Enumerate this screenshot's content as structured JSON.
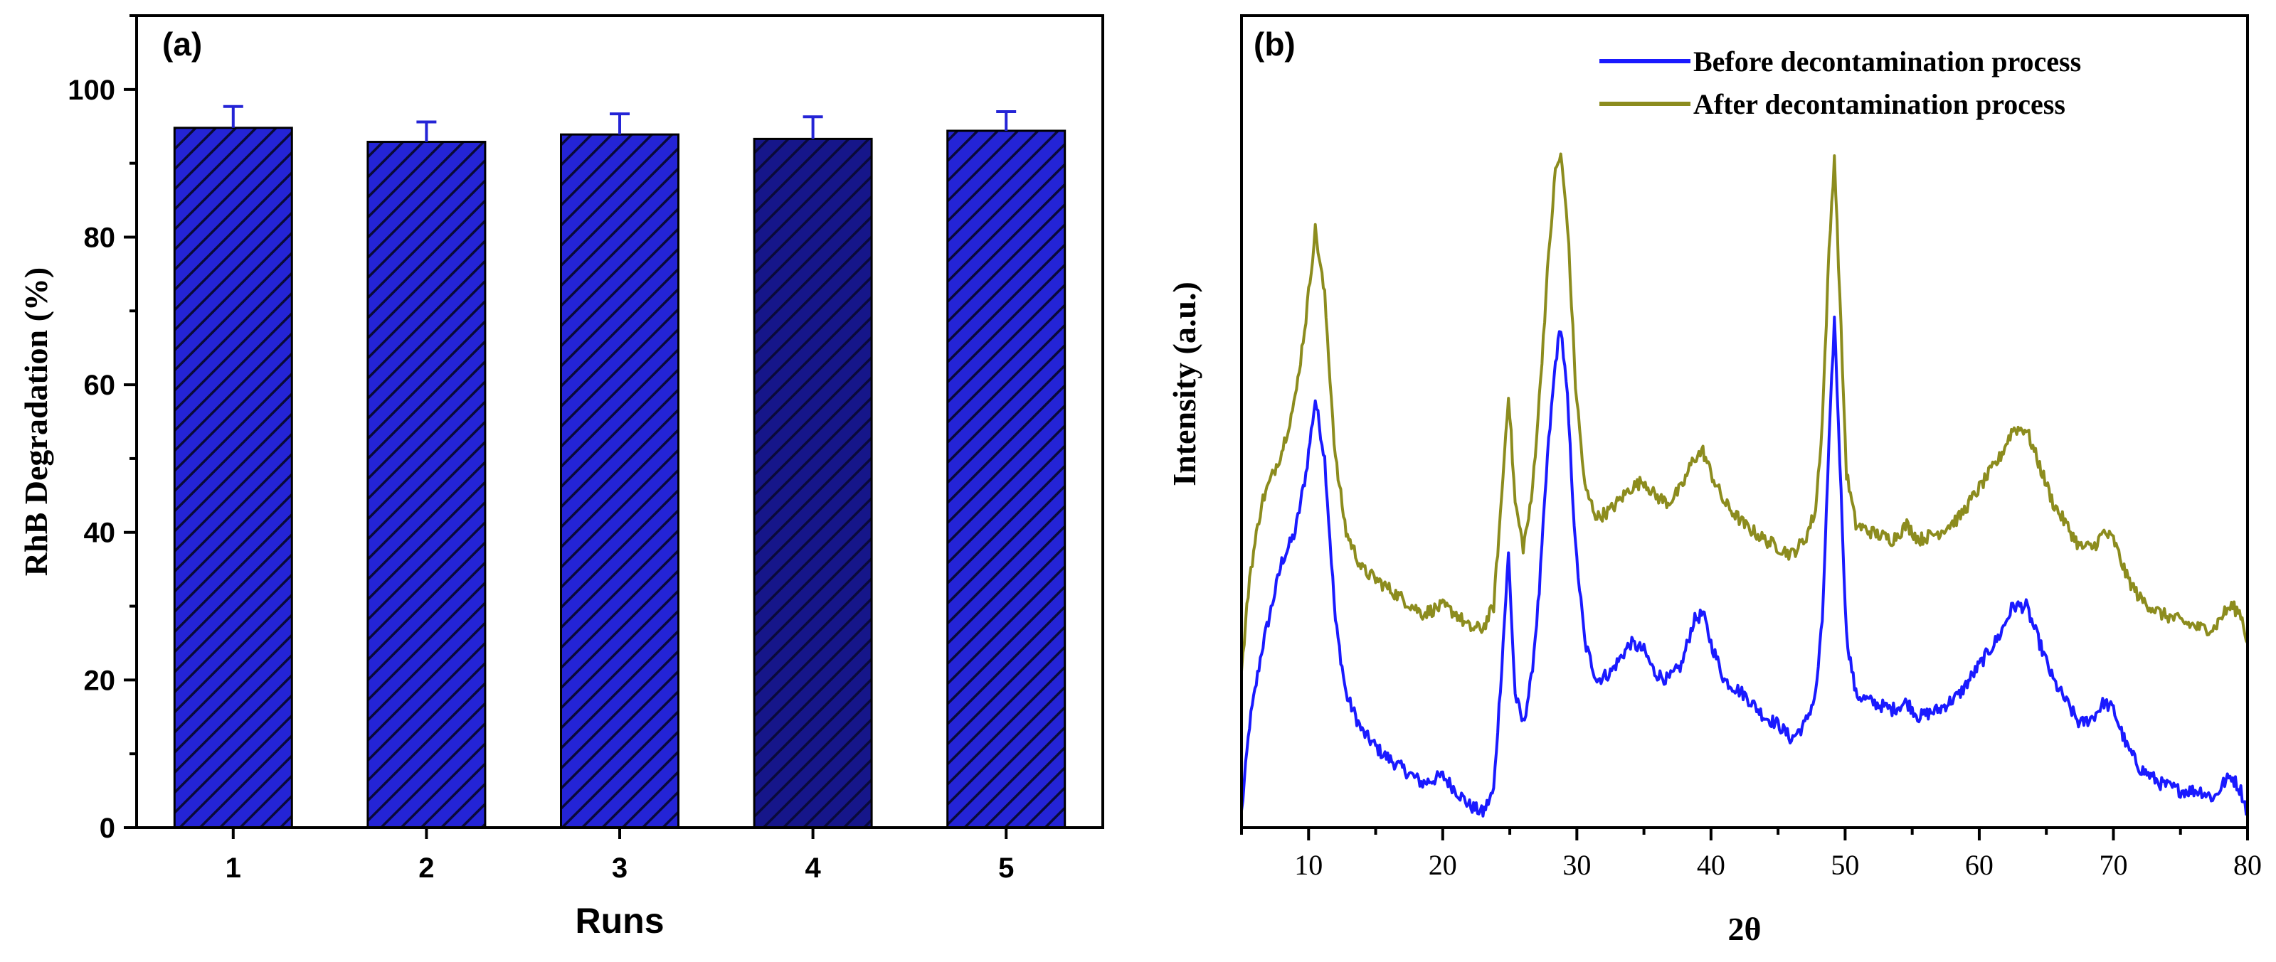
{
  "chart_data": [
    {
      "panel": "(a)",
      "type": "bar",
      "categories": [
        "1",
        "2",
        "3",
        "4",
        "5"
      ],
      "values": [
        94.8,
        92.9,
        93.9,
        93.3,
        94.4
      ],
      "errors": [
        2.9,
        2.7,
        2.8,
        3.0,
        2.6
      ],
      "xlabel": "Runs",
      "ylabel": "RhB Degradation (%)",
      "ylim": [
        0,
        110
      ],
      "yticks": [
        0,
        20,
        40,
        60,
        80,
        100
      ],
      "bar_color": "#2424d6",
      "bar_color_dark": "#16168a",
      "hatch_color": "#0a0a3a"
    },
    {
      "panel": "(b)",
      "type": "line",
      "xlabel": "2θ",
      "ylabel": "Intensity (a.u.)",
      "xlim": [
        5,
        80
      ],
      "ylim": [
        0,
        110
      ],
      "xticks": [
        10,
        20,
        30,
        40,
        50,
        60,
        70,
        80
      ],
      "series": [
        {
          "name": "Before decontamination process",
          "color": "#1a1aff",
          "x": [
            5,
            5.6,
            6.5,
            8,
            9,
            9.8,
            10.5,
            11.2,
            12,
            12.8,
            14,
            15.5,
            17,
            18.5,
            20,
            21,
            22,
            23,
            23.8,
            24.4,
            24.9,
            25.4,
            26,
            26.6,
            27.2,
            27.8,
            28.4,
            28.8,
            29.3,
            29.9,
            30.6,
            31.5,
            32.5,
            34,
            35,
            35.8,
            36.8,
            37.8,
            38.7,
            39.4,
            40,
            41,
            42.5,
            44,
            45,
            46,
            47,
            47.8,
            48.3,
            48.8,
            49.2,
            49.6,
            50.1,
            50.8,
            52,
            53.5,
            54.6,
            55.5,
            57,
            58.5,
            60,
            61.5,
            62.5,
            63.5,
            64.5,
            65.5,
            66.5,
            67.5,
            68.5,
            69.3,
            70,
            71,
            72,
            73.5,
            75,
            76.5,
            77.5,
            78.2,
            78.8,
            79.5,
            80
          ],
          "y": [
            2,
            14,
            24,
            36,
            40,
            48,
            58,
            50,
            28,
            18,
            13,
            10,
            8,
            6,
            7,
            5,
            3,
            2,
            5,
            22,
            37,
            18,
            14,
            20,
            32,
            50,
            63,
            68,
            58,
            38,
            25,
            20,
            21,
            25,
            24,
            21,
            20,
            22,
            28,
            29,
            25,
            20,
            18,
            15,
            14,
            12,
            14,
            18,
            28,
            52,
            69,
            50,
            26,
            18,
            17,
            16,
            17,
            15,
            16,
            18,
            22,
            26,
            30,
            30,
            25,
            20,
            17,
            14,
            15,
            17,
            16,
            11,
            8,
            6,
            5,
            5,
            4,
            6,
            7,
            5,
            2
          ]
        },
        {
          "name": "After decontamination process",
          "color": "#8c8c1e",
          "x": [
            5,
            5.6,
            6.5,
            8,
            9,
            9.8,
            10.5,
            11.2,
            12,
            12.8,
            14,
            15.5,
            17,
            18.5,
            20,
            21,
            22,
            23,
            23.8,
            24.4,
            24.9,
            25.4,
            26,
            26.6,
            27.2,
            27.8,
            28.4,
            28.8,
            29.3,
            29.9,
            30.6,
            31.5,
            32.5,
            34,
            35,
            35.8,
            36.8,
            37.8,
            38.7,
            39.4,
            40,
            41,
            42.5,
            44,
            45,
            46,
            47,
            47.8,
            48.3,
            48.8,
            49.2,
            49.6,
            50.1,
            50.8,
            52,
            53.5,
            54.6,
            55.5,
            57,
            58.5,
            60,
            61.5,
            62.5,
            63.5,
            64.5,
            65.5,
            66.5,
            67.5,
            68.5,
            69.3,
            70,
            71,
            72,
            73.5,
            75,
            76.5,
            77.5,
            78.2,
            78.8,
            79.5,
            80
          ],
          "y": [
            21,
            34,
            44,
            51,
            58,
            69,
            81,
            72,
            50,
            40,
            35,
            33,
            31,
            29,
            30,
            29,
            27,
            27,
            30,
            45,
            59,
            44,
            38,
            44,
            58,
            75,
            89,
            91,
            82,
            60,
            46,
            42,
            43,
            46,
            47,
            45,
            44,
            46,
            50,
            51,
            48,
            44,
            41,
            39,
            38,
            37,
            39,
            43,
            55,
            78,
            91,
            72,
            48,
            41,
            40,
            39,
            41,
            39,
            40,
            42,
            46,
            50,
            54,
            54,
            49,
            44,
            41,
            38,
            38,
            40,
            39,
            34,
            31,
            29,
            28,
            27,
            27,
            29,
            30,
            29,
            25
          ]
        }
      ]
    }
  ]
}
